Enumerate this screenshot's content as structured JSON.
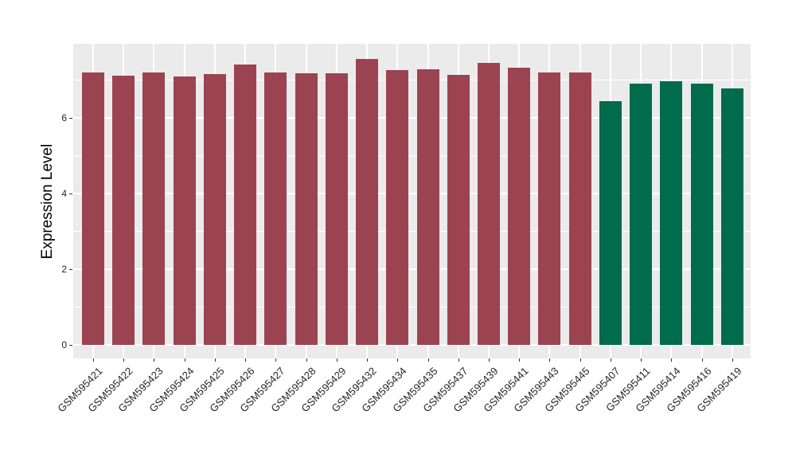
{
  "chart_data": {
    "type": "bar",
    "title": "",
    "xlabel": "",
    "ylabel": "Expression Level",
    "ylim": [
      0,
      7.96
    ],
    "yticks": [
      0,
      2,
      4,
      6
    ],
    "yticks_minor": [
      1,
      3,
      5,
      7
    ],
    "grid": "on",
    "legend": "none",
    "categories": [
      "GSM595421",
      "GSM595422",
      "GSM595423",
      "GSM595424",
      "GSM595425",
      "GSM595426",
      "GSM595427",
      "GSM595428",
      "GSM595429",
      "GSM595432",
      "GSM595434",
      "GSM595435",
      "GSM595437",
      "GSM595439",
      "GSM595441",
      "GSM595443",
      "GSM595445",
      "GSM595407",
      "GSM595411",
      "GSM595414",
      "GSM595416",
      "GSM595419"
    ],
    "values": [
      7.21,
      7.12,
      7.21,
      7.1,
      7.15,
      7.42,
      7.19,
      7.17,
      7.18,
      7.55,
      7.27,
      7.29,
      7.14,
      7.45,
      7.32,
      7.21,
      7.21,
      6.45,
      6.9,
      6.97,
      6.9,
      6.77
    ],
    "bar_colors": [
      "#9B4351",
      "#9B4351",
      "#9B4351",
      "#9B4351",
      "#9B4351",
      "#9B4351",
      "#9B4351",
      "#9B4351",
      "#9B4351",
      "#9B4351",
      "#9B4351",
      "#9B4351",
      "#9B4351",
      "#9B4351",
      "#9B4351",
      "#9B4351",
      "#9B4351",
      "#006B4D",
      "#006B4D",
      "#006B4D",
      "#006B4D",
      "#006B4D"
    ]
  },
  "colors": {
    "panel_background": "#EBEBEB",
    "gridline": "#FFFFFF",
    "group_red": "#9B4351",
    "group_green": "#006B4D",
    "axis_text": "#262626",
    "tick_mark": "#333333",
    "figure_background": "#FFFFFF"
  }
}
